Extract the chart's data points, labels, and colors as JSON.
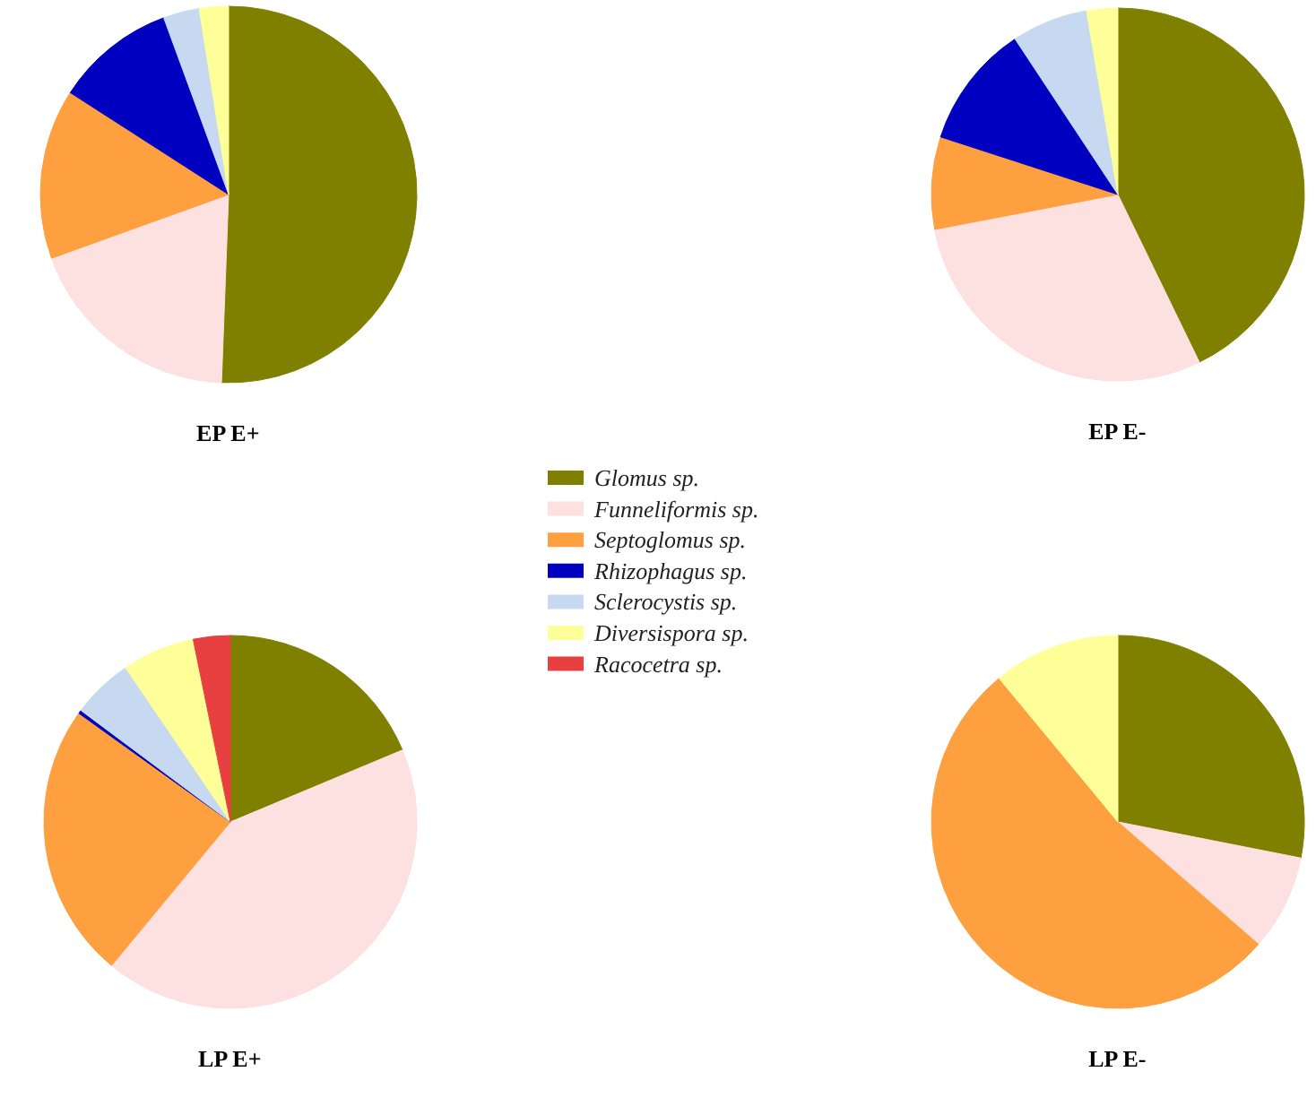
{
  "chart_data": [
    {
      "type": "pie",
      "title": "EP E+",
      "legend": "center",
      "categories": [
        "Glomus sp.",
        "Funneliformis sp.",
        "Septoglomus sp.",
        "Rhizophagus sp.",
        "Sclerocystis sp.",
        "Diversispora sp.",
        "Racocetra sp."
      ],
      "values": [
        50.6,
        18.9,
        14.6,
        10.3,
        3.1,
        2.5,
        0
      ],
      "colors": [
        "#808000",
        "#fde0e0",
        "#ffa040",
        "#0000c0",
        "#c6d9f1",
        "#ffff99",
        "#e84040"
      ]
    },
    {
      "type": "pie",
      "title": "EP E-",
      "categories": [
        null,
        null,
        null,
        null,
        null,
        null,
        null
      ],
      "values": [
        42.8,
        29.2,
        8.0,
        10.7,
        6.6,
        2.7,
        0
      ],
      "colors": [
        "#808000",
        "#fde0e0",
        "#ffa040",
        "#0000c0",
        "#c6d9f1",
        "#ffff99",
        "#e84040"
      ]
    },
    {
      "type": "pie",
      "title": "LP E+",
      "categories": [
        null,
        null,
        null,
        null,
        null,
        null,
        null
      ],
      "values": [
        18.7,
        42.3,
        23.9,
        0.3,
        5.3,
        6.3,
        3.2
      ],
      "colors": [
        "#808000",
        "#fde0e0",
        "#ffa040",
        "#0000c0",
        "#c6d9f1",
        "#ffff99",
        "#e84040"
      ]
    },
    {
      "type": "pie",
      "title": "LP E-",
      "categories": [
        null,
        null,
        null,
        null,
        null,
        null,
        null
      ],
      "values": [
        28.1,
        8.3,
        52.6,
        0,
        0,
        11.0,
        0
      ],
      "colors": [
        "#808000",
        "#fde0e0",
        "#ffa040",
        "#0000c0",
        "#c6d9f1",
        "#ffff99",
        "#e84040"
      ]
    }
  ]
}
